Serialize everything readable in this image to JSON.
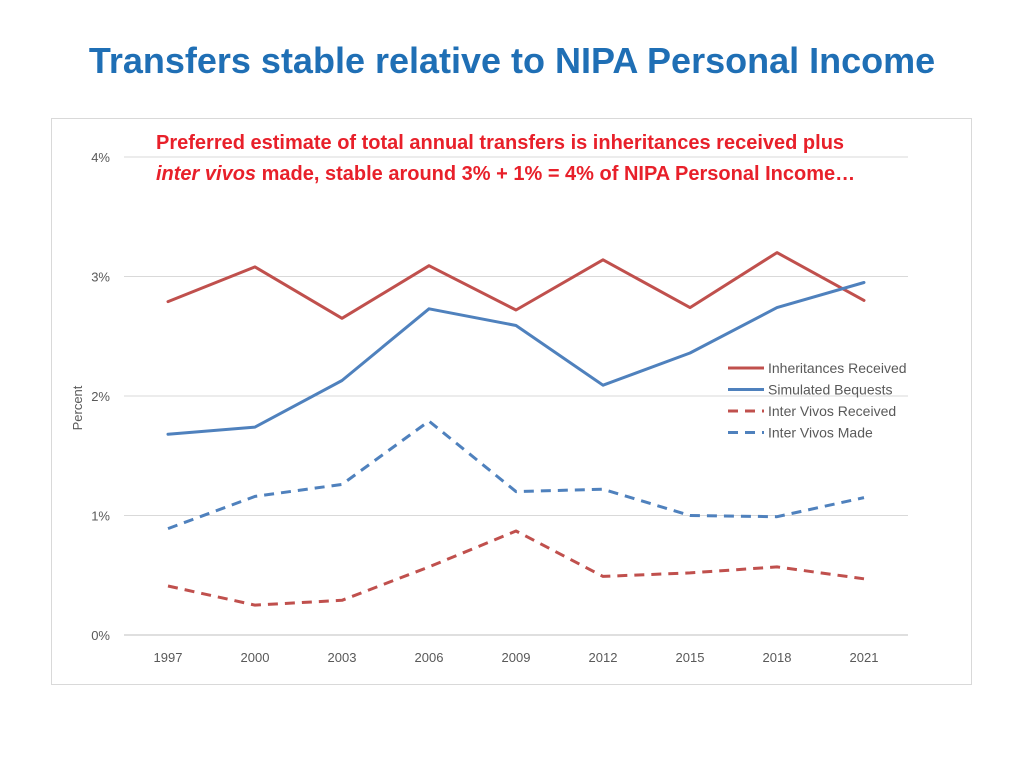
{
  "slide": {
    "title": "Transfers stable relative to NIPA Personal Income"
  },
  "annotation": {
    "line1": "Preferred estimate of total annual transfers is inheritances received plus",
    "line2_italic": "inter vivos",
    "line2_rest": " made, stable around 3% + 1% = 4% of NIPA Personal Income…",
    "color": "#e8202a"
  },
  "chart_data": {
    "type": "line",
    "ylabel": "Percent",
    "xlabel": "",
    "categories": [
      "1997",
      "2000",
      "2003",
      "2006",
      "2009",
      "2012",
      "2015",
      "2018",
      "2021"
    ],
    "ylim": [
      0,
      4
    ],
    "yticks": [
      0,
      1,
      2,
      3,
      4
    ],
    "ytick_labels": [
      "0%",
      "1%",
      "2%",
      "3%",
      "4%"
    ],
    "grid": true,
    "legend_position": "right",
    "series": [
      {
        "name": "Inheritances Received",
        "color": "#c0504d",
        "dash": "solid",
        "values": [
          2.79,
          3.08,
          2.65,
          3.09,
          2.72,
          3.14,
          2.74,
          3.2,
          2.8
        ]
      },
      {
        "name": "Simulated Bequests",
        "color": "#4f81bd",
        "dash": "solid",
        "values": [
          1.68,
          1.74,
          2.13,
          2.73,
          2.59,
          2.09,
          2.36,
          2.74,
          2.95
        ]
      },
      {
        "name": "Inter Vivos Received",
        "color": "#c0504d",
        "dash": "dashed",
        "values": [
          0.41,
          0.25,
          0.29,
          0.57,
          0.87,
          0.49,
          0.52,
          0.57,
          0.47
        ]
      },
      {
        "name": "Inter Vivos Made",
        "color": "#4f81bd",
        "dash": "dashed",
        "values": [
          0.89,
          1.16,
          1.26,
          1.79,
          1.2,
          1.22,
          1.0,
          0.99,
          1.15
        ]
      }
    ]
  }
}
